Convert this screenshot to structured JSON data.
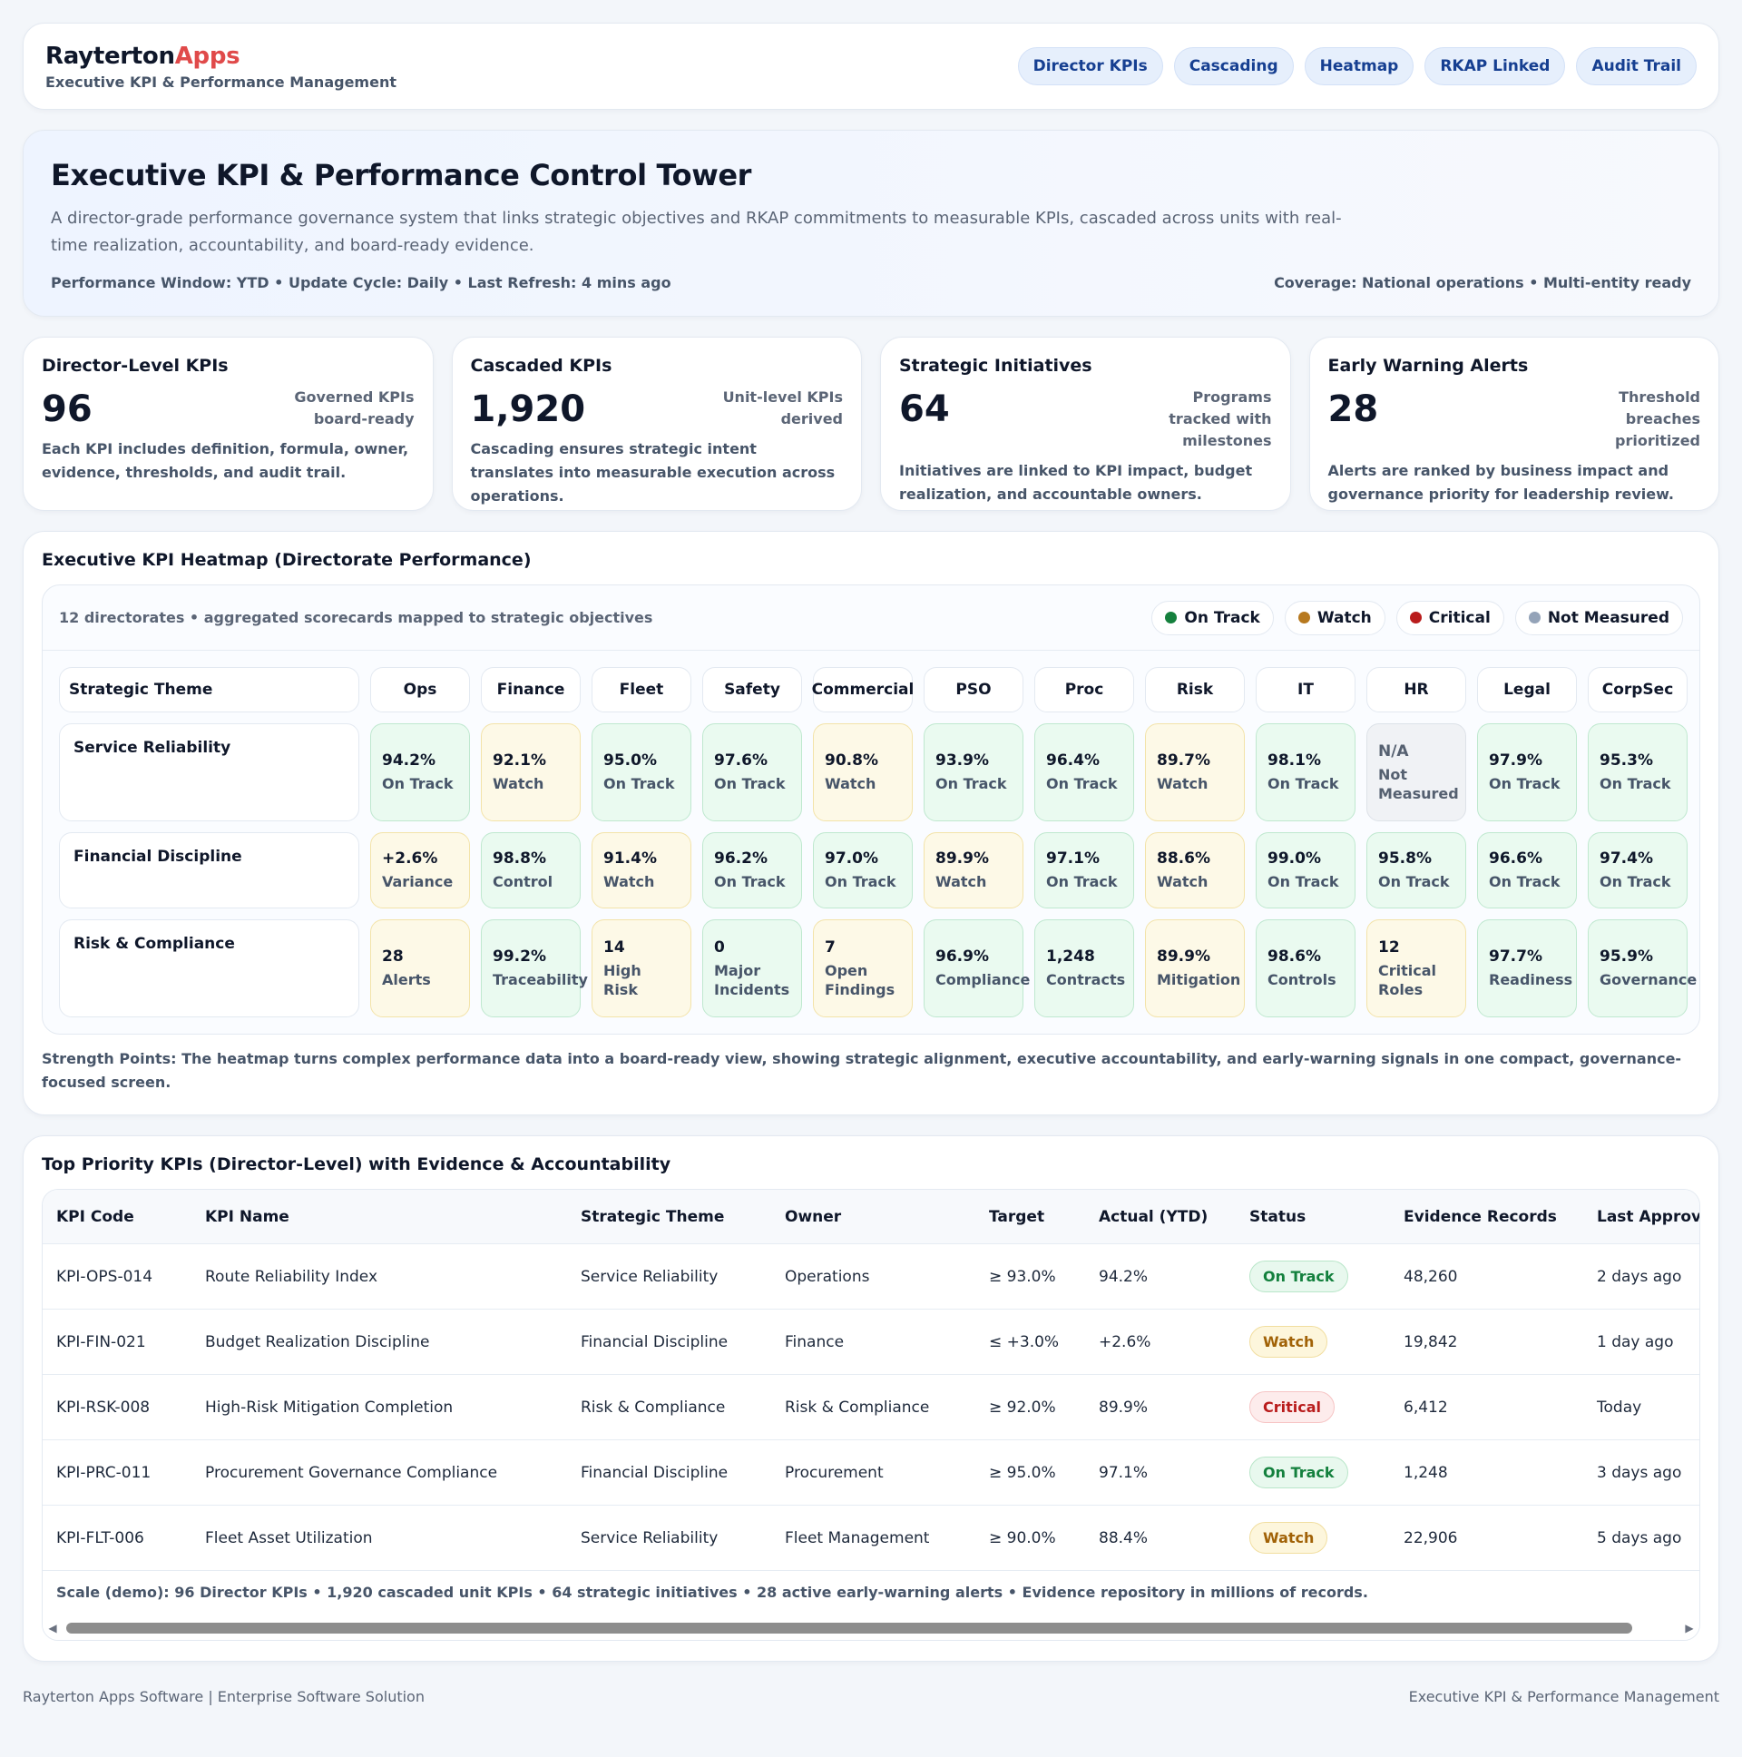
{
  "brand": {
    "name_part1": "Rayterton",
    "name_part2": "Apps",
    "subtitle": "Executive KPI & Performance Management"
  },
  "nav": [
    "Director KPIs",
    "Cascading",
    "Heatmap",
    "RKAP Linked",
    "Audit Trail"
  ],
  "hero": {
    "title": "Executive KPI & Performance Control Tower",
    "description": "A director-grade performance governance system that links strategic objectives and RKAP commitments to measurable KPIs, cascaded across units with real-time realization, accountability, and board-ready evidence.",
    "meta_left": "Performance Window: YTD • Update Cycle: Daily • Last Refresh: 4 mins ago",
    "meta_right": "Coverage: National operations • Multi-entity ready"
  },
  "stats": [
    {
      "label": "Director-Level KPIs",
      "value": "96",
      "side": "Governed KPIs board-ready",
      "desc": "Each KPI includes definition, formula, owner, evidence, thresholds, and audit trail."
    },
    {
      "label": "Cascaded KPIs",
      "value": "1,920",
      "side": "Unit-level KPIs derived",
      "desc": "Cascading ensures strategic intent translates into measurable execution across operations."
    },
    {
      "label": "Strategic Initiatives",
      "value": "64",
      "side": "Programs tracked with milestones",
      "desc": "Initiatives are linked to KPI impact, budget realization, and accountable owners."
    },
    {
      "label": "Early Warning Alerts",
      "value": "28",
      "side": "Threshold breaches prioritized",
      "desc": "Alerts are ranked by business impact and governance priority for leadership review."
    }
  ],
  "heatmap": {
    "title": "Executive KPI Heatmap (Directorate Performance)",
    "subtitle": "12 directorates • aggregated scorecards mapped to strategic objectives",
    "legend": [
      {
        "label": "On Track",
        "color": "#15803d"
      },
      {
        "label": "Watch",
        "color": "#b7791f"
      },
      {
        "label": "Critical",
        "color": "#b91c1c"
      },
      {
        "label": "Not Measured",
        "color": "#94a3b8"
      }
    ],
    "theme_header": "Strategic Theme",
    "columns": [
      "Ops",
      "Finance",
      "Fleet",
      "Safety",
      "Commercial",
      "PSO",
      "Proc",
      "Risk",
      "IT",
      "HR",
      "Legal",
      "CorpSec"
    ],
    "rows": [
      {
        "theme": "Service Reliability",
        "cells": [
          {
            "v": "94.2%",
            "s": "On Track",
            "t": "ok"
          },
          {
            "v": "92.1%",
            "s": "Watch",
            "t": "warn"
          },
          {
            "v": "95.0%",
            "s": "On Track",
            "t": "ok"
          },
          {
            "v": "97.6%",
            "s": "On Track",
            "t": "ok"
          },
          {
            "v": "90.8%",
            "s": "Watch",
            "t": "warn"
          },
          {
            "v": "93.9%",
            "s": "On Track",
            "t": "ok"
          },
          {
            "v": "96.4%",
            "s": "On Track",
            "t": "ok"
          },
          {
            "v": "89.7%",
            "s": "Watch",
            "t": "warn"
          },
          {
            "v": "98.1%",
            "s": "On Track",
            "t": "ok"
          },
          {
            "v": "N/A",
            "s": "Not Measured",
            "t": "na"
          },
          {
            "v": "97.9%",
            "s": "On Track",
            "t": "ok"
          },
          {
            "v": "95.3%",
            "s": "On Track",
            "t": "ok"
          }
        ]
      },
      {
        "theme": "Financial Discipline",
        "cells": [
          {
            "v": "+2.6%",
            "s": "Variance",
            "t": "warn"
          },
          {
            "v": "98.8%",
            "s": "Control",
            "t": "ok"
          },
          {
            "v": "91.4%",
            "s": "Watch",
            "t": "warn"
          },
          {
            "v": "96.2%",
            "s": "On Track",
            "t": "ok"
          },
          {
            "v": "97.0%",
            "s": "On Track",
            "t": "ok"
          },
          {
            "v": "89.9%",
            "s": "Watch",
            "t": "warn"
          },
          {
            "v": "97.1%",
            "s": "On Track",
            "t": "ok"
          },
          {
            "v": "88.6%",
            "s": "Watch",
            "t": "warn"
          },
          {
            "v": "99.0%",
            "s": "On Track",
            "t": "ok"
          },
          {
            "v": "95.8%",
            "s": "On Track",
            "t": "ok"
          },
          {
            "v": "96.6%",
            "s": "On Track",
            "t": "ok"
          },
          {
            "v": "97.4%",
            "s": "On Track",
            "t": "ok"
          }
        ]
      },
      {
        "theme": "Risk & Compliance",
        "cells": [
          {
            "v": "28",
            "s": "Alerts",
            "t": "warn"
          },
          {
            "v": "99.2%",
            "s": "Traceability",
            "t": "ok"
          },
          {
            "v": "14",
            "s": "High Risk",
            "t": "warn"
          },
          {
            "v": "0",
            "s": "Major Incidents",
            "t": "ok"
          },
          {
            "v": "7",
            "s": "Open Findings",
            "t": "warn"
          },
          {
            "v": "96.9%",
            "s": "Compliance",
            "t": "ok"
          },
          {
            "v": "1,248",
            "s": "Contracts",
            "t": "ok"
          },
          {
            "v": "89.9%",
            "s": "Mitigation",
            "t": "warn"
          },
          {
            "v": "98.6%",
            "s": "Controls",
            "t": "ok"
          },
          {
            "v": "12",
            "s": "Critical Roles",
            "t": "warn"
          },
          {
            "v": "97.7%",
            "s": "Readiness",
            "t": "ok"
          },
          {
            "v": "95.9%",
            "s": "Governance",
            "t": "ok"
          }
        ]
      }
    ],
    "strength": "Strength Points: The heatmap turns complex performance data into a board-ready view, showing strategic alignment, executive accountability, and early-warning signals in one compact, governance-focused screen."
  },
  "table": {
    "title": "Top Priority KPIs (Director-Level) with Evidence & Accountability",
    "headers": [
      "KPI Code",
      "KPI Name",
      "Strategic Theme",
      "Owner",
      "Target",
      "Actual (YTD)",
      "Status",
      "Evidence Records",
      "Last Approval"
    ],
    "rows": [
      {
        "code": "KPI-OPS-014",
        "name": "Route Reliability Index",
        "theme": "Service Reliability",
        "owner": "Operations",
        "target": "≥ 93.0%",
        "actual": "94.2%",
        "status": "On Track",
        "status_type": "ok",
        "evidence": "48,260",
        "approval": "2 days ago"
      },
      {
        "code": "KPI-FIN-021",
        "name": "Budget Realization Discipline",
        "theme": "Financial Discipline",
        "owner": "Finance",
        "target": "≤ +3.0%",
        "actual": "+2.6%",
        "status": "Watch",
        "status_type": "warn",
        "evidence": "19,842",
        "approval": "1 day ago"
      },
      {
        "code": "KPI-RSK-008",
        "name": "High-Risk Mitigation Completion",
        "theme": "Risk & Compliance",
        "owner": "Risk & Compliance",
        "target": "≥ 92.0%",
        "actual": "89.9%",
        "status": "Critical",
        "status_type": "crit",
        "evidence": "6,412",
        "approval": "Today"
      },
      {
        "code": "KPI-PRC-011",
        "name": "Procurement Governance Compliance",
        "theme": "Financial Discipline",
        "owner": "Procurement",
        "target": "≥ 95.0%",
        "actual": "97.1%",
        "status": "On Track",
        "status_type": "ok",
        "evidence": "1,248",
        "approval": "3 days ago"
      },
      {
        "code": "KPI-FLT-006",
        "name": "Fleet Asset Utilization",
        "theme": "Service Reliability",
        "owner": "Fleet Management",
        "target": "≥ 90.0%",
        "actual": "88.4%",
        "status": "Watch",
        "status_type": "warn",
        "evidence": "22,906",
        "approval": "5 days ago"
      }
    ],
    "scale_note": "Scale (demo): 96 Director KPIs • 1,920 cascaded unit KPIs • 64 strategic initiatives • 28 active early-warning alerts • Evidence repository in millions of records."
  },
  "footer": {
    "left": "Rayterton Apps Software | Enterprise Software Solution",
    "right": "Executive KPI & Performance Management"
  }
}
